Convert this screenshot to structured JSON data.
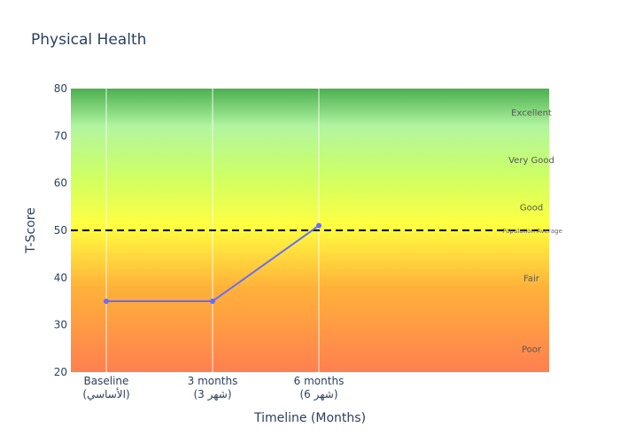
{
  "chart_data": {
    "type": "line",
    "title": "Physical Health",
    "xlabel": "Timeline (Months)",
    "ylabel": "T-Score",
    "ylim": [
      20,
      80
    ],
    "yticks": [
      20,
      30,
      40,
      50,
      60,
      70,
      80
    ],
    "categories": [
      {
        "label": "Baseline",
        "sublabel": "(الأساسي)"
      },
      {
        "label": "3 months",
        "sublabel": "(شهر 3)"
      },
      {
        "label": "6 months",
        "sublabel": "(شهر 6)"
      }
    ],
    "x": [
      0,
      3,
      6
    ],
    "xlim": [
      -1,
      12.5
    ],
    "series": [
      {
        "name": "",
        "values": [
          35,
          35,
          51
        ],
        "color": "#636efa"
      }
    ],
    "reference_line": {
      "value": 50,
      "label": "Population Average",
      "color": "#000000"
    },
    "bands": [
      {
        "label": "Excellent",
        "label_y": 75
      },
      {
        "label": "Very Good",
        "label_y": 65
      },
      {
        "label": "Good",
        "label_y": 55
      },
      {
        "label": "Fair",
        "label_y": 40
      },
      {
        "label": "Poor",
        "label_y": 25
      }
    ],
    "gradient": [
      {
        "value": 80,
        "color": "#4caf50"
      },
      {
        "value": 72,
        "color": "#b2f5a0"
      },
      {
        "value": 62,
        "color": "#ccff66"
      },
      {
        "value": 51,
        "color": "#ffff40"
      },
      {
        "value": 38,
        "color": "#ffb23a"
      },
      {
        "value": 20,
        "color": "#ff7f50"
      }
    ],
    "grid": true
  }
}
